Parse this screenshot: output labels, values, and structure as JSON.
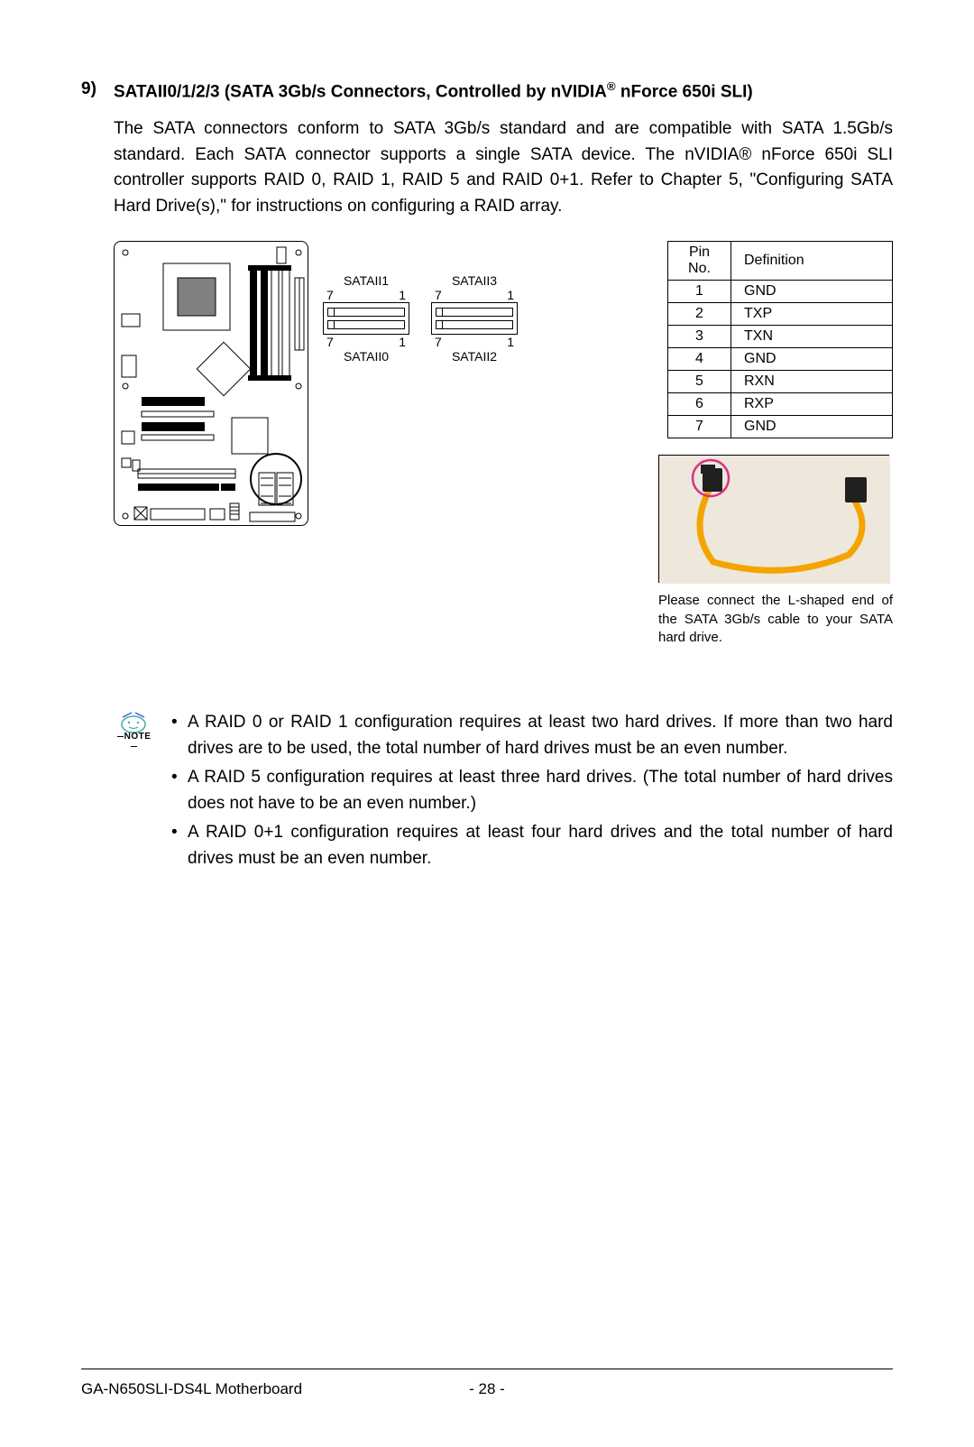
{
  "section": {
    "number": "9)",
    "title_pre": "SATAII0/1/2/3 (SATA 3Gb/s Connectors, Controlled by nVIDIA",
    "title_post": " nForce 650i SLI)",
    "reg_mark": "®"
  },
  "paragraph": "The SATA connectors conform to SATA 3Gb/s standard and are compatible with SATA 1.5Gb/s standard. Each SATA connector supports a single SATA device. The nVIDIA® nForce 650i SLI controller supports RAID 0, RAID 1, RAID 5 and RAID 0+1. Refer to Chapter 5, \"Configuring SATA Hard Drive(s),\" for instructions on configuring a RAID array.",
  "connectors": {
    "top_left": "SATAII1",
    "top_right": "SATAII3",
    "bottom_left": "SATAII0",
    "bottom_right": "SATAII2",
    "pin_left": "7",
    "pin_right": "1"
  },
  "pin_table": {
    "headers": [
      "Pin No.",
      "Definition"
    ],
    "rows": [
      [
        "1",
        "GND"
      ],
      [
        "2",
        "TXP"
      ],
      [
        "3",
        "TXN"
      ],
      [
        "4",
        "GND"
      ],
      [
        "5",
        "RXN"
      ],
      [
        "6",
        "RXP"
      ],
      [
        "7",
        "GND"
      ]
    ]
  },
  "photo_caption": "Please connect the L-shaped end of the SATA 3Gb/s cable to your SATA hard drive.",
  "cable": {
    "bg": "#ede7dc",
    "color": "#f4a400",
    "connector": "#202020",
    "circle": "#d63384"
  },
  "notes": {
    "label": "NOTE",
    "items": [
      "A RAID 0 or RAID 1 configuration requires at least two hard drives. If more than two hard drives are to be used, the total number of hard drives must be an even number.",
      "A RAID 5 configuration requires at least three hard drives. (The total number of hard drives does not have to be an even number.)",
      "A RAID 0+1 configuration requires at least four hard drives and the total number of hard drives must be an even number."
    ]
  },
  "footer": {
    "title": "GA-N650SLI-DS4L Motherboard",
    "page": "- 28 -"
  }
}
